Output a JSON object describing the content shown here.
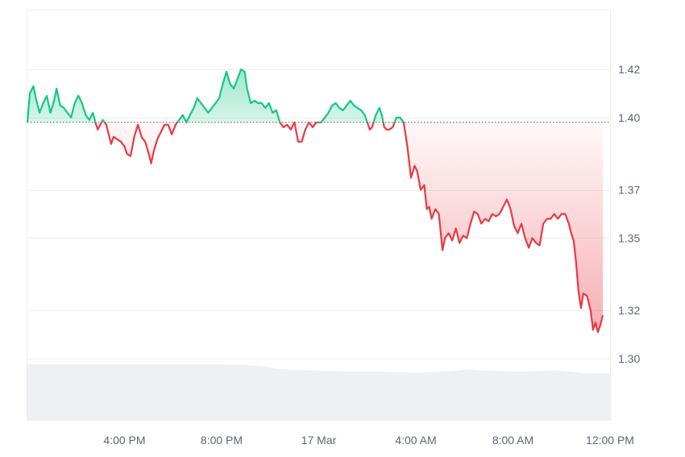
{
  "chart_data": {
    "type": "area",
    "baseline": 1.398,
    "colors": {
      "up": "#16c784",
      "down": "#ea3943",
      "up_fill": "#16c784",
      "down_fill": "#ea3943",
      "grid": "#eeeeee",
      "volume": "#eef0f3",
      "baseline_dots": "#555555"
    },
    "ylim": [
      1.28,
      1.45
    ],
    "xlim": [
      0,
      24
    ],
    "y_ticks": [
      {
        "value": 1.3,
        "label": "1.30"
      },
      {
        "value": 1.32,
        "label": "1.32"
      },
      {
        "value": 1.35,
        "label": "1.35"
      },
      {
        "value": 1.37,
        "label": "1.37"
      },
      {
        "value": 1.4,
        "label": "1.40"
      },
      {
        "value": 1.42,
        "label": "1.42"
      }
    ],
    "x_ticks": [
      {
        "value": 4,
        "label": "4:00 PM"
      },
      {
        "value": 8,
        "label": "8:00 PM"
      },
      {
        "value": 12,
        "label": "17 Mar"
      },
      {
        "value": 16,
        "label": "4:00 AM"
      },
      {
        "value": 20,
        "label": "8:00 AM"
      },
      {
        "value": 24,
        "label": "12:00 PM"
      }
    ],
    "series": [
      {
        "values": [
          [
            0.0,
            1.398
          ],
          [
            0.1,
            1.41
          ],
          [
            0.25,
            1.413
          ],
          [
            0.35,
            1.408
          ],
          [
            0.5,
            1.402
          ],
          [
            0.65,
            1.406
          ],
          [
            0.8,
            1.409
          ],
          [
            0.95,
            1.402
          ],
          [
            1.1,
            1.407
          ],
          [
            1.2,
            1.412
          ],
          [
            1.35,
            1.405
          ],
          [
            1.5,
            1.404
          ],
          [
            1.65,
            1.402
          ],
          [
            1.8,
            1.4
          ],
          [
            1.95,
            1.406
          ],
          [
            2.1,
            1.409
          ],
          [
            2.25,
            1.406
          ],
          [
            2.4,
            1.401
          ],
          [
            2.55,
            1.399
          ],
          [
            2.7,
            1.402
          ],
          [
            2.8,
            1.398
          ],
          [
            2.9,
            1.395
          ],
          [
            3.0,
            1.397
          ],
          [
            3.1,
            1.399
          ],
          [
            3.25,
            1.397
          ],
          [
            3.35,
            1.393
          ],
          [
            3.45,
            1.389
          ],
          [
            3.55,
            1.392
          ],
          [
            3.7,
            1.391
          ],
          [
            3.85,
            1.39
          ],
          [
            4.0,
            1.388
          ],
          [
            4.1,
            1.385
          ],
          [
            4.25,
            1.384
          ],
          [
            4.4,
            1.392
          ],
          [
            4.55,
            1.397
          ],
          [
            4.7,
            1.392
          ],
          [
            4.85,
            1.39
          ],
          [
            5.0,
            1.385
          ],
          [
            5.1,
            1.381
          ],
          [
            5.2,
            1.386
          ],
          [
            5.35,
            1.391
          ],
          [
            5.5,
            1.394
          ],
          [
            5.65,
            1.397
          ],
          [
            5.8,
            1.397
          ],
          [
            5.95,
            1.393
          ],
          [
            6.1,
            1.397
          ],
          [
            6.25,
            1.399
          ],
          [
            6.4,
            1.401
          ],
          [
            6.55,
            1.398
          ],
          [
            6.7,
            1.401
          ],
          [
            6.85,
            1.404
          ],
          [
            7.0,
            1.408
          ],
          [
            7.15,
            1.406
          ],
          [
            7.3,
            1.404
          ],
          [
            7.45,
            1.402
          ],
          [
            7.6,
            1.404
          ],
          [
            7.75,
            1.406
          ],
          [
            7.9,
            1.408
          ],
          [
            8.05,
            1.414
          ],
          [
            8.2,
            1.419
          ],
          [
            8.35,
            1.414
          ],
          [
            8.5,
            1.412
          ],
          [
            8.65,
            1.416
          ],
          [
            8.8,
            1.42
          ],
          [
            8.95,
            1.419
          ],
          [
            9.05,
            1.412
          ],
          [
            9.2,
            1.406
          ],
          [
            9.35,
            1.407
          ],
          [
            9.5,
            1.406
          ],
          [
            9.65,
            1.406
          ],
          [
            9.8,
            1.404
          ],
          [
            9.95,
            1.406
          ],
          [
            10.1,
            1.402
          ],
          [
            10.25,
            1.403
          ],
          [
            10.4,
            1.398
          ],
          [
            10.55,
            1.396
          ],
          [
            10.7,
            1.397
          ],
          [
            10.85,
            1.395
          ],
          [
            11.0,
            1.398
          ],
          [
            11.15,
            1.39
          ],
          [
            11.3,
            1.39
          ],
          [
            11.45,
            1.395
          ],
          [
            11.6,
            1.398
          ],
          [
            11.75,
            1.396
          ],
          [
            11.9,
            1.398
          ],
          [
            12.1,
            1.398
          ],
          [
            12.25,
            1.4
          ],
          [
            12.4,
            1.402
          ],
          [
            12.55,
            1.405
          ],
          [
            12.7,
            1.406
          ],
          [
            12.85,
            1.404
          ],
          [
            13.0,
            1.403
          ],
          [
            13.15,
            1.405
          ],
          [
            13.3,
            1.407
          ],
          [
            13.45,
            1.405
          ],
          [
            13.6,
            1.404
          ],
          [
            13.75,
            1.403
          ],
          [
            13.9,
            1.401
          ],
          [
            14.0,
            1.398
          ],
          [
            14.1,
            1.395
          ],
          [
            14.2,
            1.396
          ],
          [
            14.35,
            1.401
          ],
          [
            14.5,
            1.404
          ],
          [
            14.6,
            1.401
          ],
          [
            14.7,
            1.396
          ],
          [
            14.8,
            1.395
          ],
          [
            14.9,
            1.395
          ],
          [
            15.05,
            1.396
          ],
          [
            15.2,
            1.4
          ],
          [
            15.35,
            1.4
          ],
          [
            15.5,
            1.398
          ],
          [
            15.65,
            1.388
          ],
          [
            15.8,
            1.375
          ],
          [
            15.95,
            1.38
          ],
          [
            16.05,
            1.378
          ],
          [
            16.2,
            1.37
          ],
          [
            16.35,
            1.372
          ],
          [
            16.45,
            1.362
          ],
          [
            16.55,
            1.363
          ],
          [
            16.65,
            1.358
          ],
          [
            16.8,
            1.362
          ],
          [
            16.95,
            1.36
          ],
          [
            17.1,
            1.345
          ],
          [
            17.2,
            1.35
          ],
          [
            17.35,
            1.352
          ],
          [
            17.5,
            1.349
          ],
          [
            17.65,
            1.354
          ],
          [
            17.8,
            1.348
          ],
          [
            17.95,
            1.351
          ],
          [
            18.1,
            1.35
          ],
          [
            18.25,
            1.356
          ],
          [
            18.4,
            1.361
          ],
          [
            18.55,
            1.36
          ],
          [
            18.7,
            1.356
          ],
          [
            18.85,
            1.358
          ],
          [
            19.0,
            1.357
          ],
          [
            19.15,
            1.36
          ],
          [
            19.3,
            1.359
          ],
          [
            19.45,
            1.36
          ],
          [
            19.6,
            1.363
          ],
          [
            19.75,
            1.366
          ],
          [
            19.9,
            1.362
          ],
          [
            20.05,
            1.355
          ],
          [
            20.2,
            1.352
          ],
          [
            20.35,
            1.356
          ],
          [
            20.5,
            1.35
          ],
          [
            20.65,
            1.346
          ],
          [
            20.8,
            1.35
          ],
          [
            20.95,
            1.348
          ],
          [
            21.1,
            1.347
          ],
          [
            21.25,
            1.356
          ],
          [
            21.4,
            1.358
          ],
          [
            21.55,
            1.358
          ],
          [
            21.7,
            1.36
          ],
          [
            21.85,
            1.358
          ],
          [
            22.0,
            1.36
          ],
          [
            22.15,
            1.36
          ],
          [
            22.3,
            1.356
          ],
          [
            22.4,
            1.352
          ],
          [
            22.5,
            1.349
          ],
          [
            22.6,
            1.34
          ],
          [
            22.7,
            1.328
          ],
          [
            22.8,
            1.321
          ],
          [
            22.9,
            1.327
          ],
          [
            23.05,
            1.326
          ],
          [
            23.2,
            1.32
          ],
          [
            23.3,
            1.312
          ],
          [
            23.4,
            1.315
          ],
          [
            23.5,
            1.311
          ],
          [
            23.6,
            1.314
          ],
          [
            23.7,
            1.318
          ]
        ]
      }
    ],
    "volume": {
      "max": 100,
      "values": [
        [
          0,
          100
        ],
        [
          1.5,
          100
        ],
        [
          3,
          100
        ],
        [
          5,
          100
        ],
        [
          7,
          100
        ],
        [
          8.5,
          100
        ],
        [
          9.2,
          98
        ],
        [
          9.8,
          96
        ],
        [
          10.3,
          92
        ],
        [
          11,
          90
        ],
        [
          12.5,
          88
        ],
        [
          13.5,
          87
        ],
        [
          14.5,
          87
        ],
        [
          15.5,
          86
        ],
        [
          16.5,
          86
        ],
        [
          17.5,
          88
        ],
        [
          18.2,
          91
        ],
        [
          18.8,
          89
        ],
        [
          19.6,
          88
        ],
        [
          20.3,
          87
        ],
        [
          21,
          88
        ],
        [
          21.8,
          89
        ],
        [
          22.4,
          87
        ],
        [
          23,
          84
        ],
        [
          24,
          84
        ]
      ]
    }
  }
}
